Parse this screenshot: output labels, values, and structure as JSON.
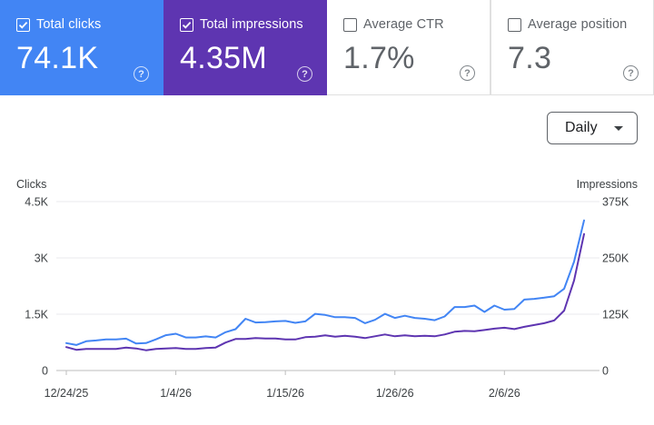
{
  "cards": [
    {
      "label": "Total clicks",
      "value": "74.1K",
      "checked": true,
      "help": "?"
    },
    {
      "label": "Total impressions",
      "value": "4.35M",
      "checked": true,
      "help": "?"
    },
    {
      "label": "Average CTR",
      "value": "1.7%",
      "checked": false,
      "help": "?"
    },
    {
      "label": "Average position",
      "value": "7.3",
      "checked": false,
      "help": "?"
    }
  ],
  "colors": {
    "clicks": "#4285f4",
    "impressions": "#5e35b1"
  },
  "granularity": {
    "selected": "Daily"
  },
  "chart_data": {
    "type": "line",
    "left_axis": {
      "label": "Clicks",
      "ticks": [
        "4.5K",
        "3K",
        "1.5K",
        "0"
      ],
      "tick_values": [
        4500,
        3000,
        1500,
        0
      ],
      "range": [
        0,
        4500
      ]
    },
    "right_axis": {
      "label": "Impressions",
      "ticks": [
        "375K",
        "250K",
        "125K",
        "0"
      ],
      "tick_values": [
        375000,
        250000,
        125000,
        0
      ],
      "range": [
        0,
        375000
      ]
    },
    "x_ticks": [
      "12/24/25",
      "1/4/26",
      "1/15/26",
      "1/26/26",
      "2/6/26"
    ],
    "x_tick_index": [
      0,
      11,
      22,
      33,
      44
    ],
    "grid": "horizontal",
    "series": [
      {
        "name": "Total clicks",
        "axis": "left",
        "color": "#4285f4",
        "values": [
          730,
          680,
          780,
          800,
          830,
          830,
          850,
          720,
          730,
          830,
          940,
          980,
          880,
          880,
          910,
          880,
          1020,
          1100,
          1380,
          1280,
          1290,
          1310,
          1320,
          1270,
          1310,
          1510,
          1480,
          1420,
          1420,
          1400,
          1260,
          1350,
          1510,
          1400,
          1460,
          1400,
          1380,
          1340,
          1440,
          1690,
          1690,
          1730,
          1560,
          1730,
          1620,
          1640,
          1890,
          1910,
          1940,
          1980,
          2180,
          2900,
          4000
        ]
      },
      {
        "name": "Total impressions",
        "axis": "right",
        "color": "#5e35b1",
        "values": [
          52000,
          46000,
          48000,
          48000,
          48000,
          48000,
          51000,
          49000,
          45000,
          48000,
          49000,
          50000,
          48000,
          48000,
          50000,
          51000,
          62000,
          70000,
          70000,
          72000,
          71000,
          71000,
          69000,
          69000,
          74000,
          75000,
          78000,
          75000,
          77000,
          75000,
          72000,
          76000,
          80000,
          76000,
          78000,
          76000,
          77000,
          76000,
          80000,
          86000,
          88000,
          87000,
          90000,
          93000,
          95000,
          92000,
          97000,
          101000,
          105000,
          111000,
          133000,
          200000,
          303000
        ]
      }
    ]
  }
}
